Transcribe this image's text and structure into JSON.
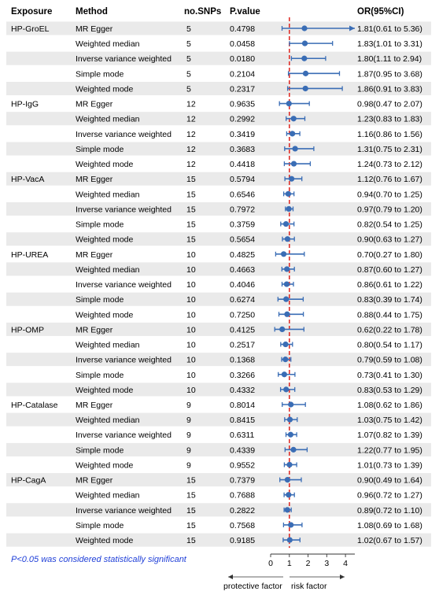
{
  "headers": {
    "exposure": "Exposure",
    "method": "Method",
    "nsnps": "no.SNPs",
    "pvalue": "P.value",
    "or": "OR(95%CI)"
  },
  "footnote": "P<0.05 was considered statistically significant",
  "axis_labels": {
    "left": "protective factor",
    "right": "risk factor"
  },
  "colors": {
    "stripe": "#eaeaea",
    "point": "#3a6db5",
    "reference_line": "#e0312b",
    "footnote": "#1f3fd8"
  },
  "chart_data": {
    "type": "forest",
    "xlim": [
      0,
      4.5
    ],
    "x_ticks": [
      0,
      1,
      2,
      3,
      4
    ],
    "reference_line": 1,
    "arrow_clipped_upper_bound": 4.5,
    "rows": [
      {
        "exposure": "HP-GroEL",
        "method": "MR Egger",
        "nsnps": "5",
        "pvalue": "0.4798",
        "or_text": "1.81(0.61 to 5.36)",
        "or": 1.81,
        "lo": 0.61,
        "hi": 5.36
      },
      {
        "exposure": "",
        "method": "Weighted median",
        "nsnps": "5",
        "pvalue": "0.0458",
        "or_text": "1.83(1.01 to 3.31)",
        "or": 1.83,
        "lo": 1.01,
        "hi": 3.31
      },
      {
        "exposure": "",
        "method": "Inverse variance weighted",
        "nsnps": "5",
        "pvalue": "0.0180",
        "or_text": "1.80(1.11 to 2.94)",
        "or": 1.8,
        "lo": 1.11,
        "hi": 2.94
      },
      {
        "exposure": "",
        "method": "Simple mode",
        "nsnps": "5",
        "pvalue": "0.2104",
        "or_text": "1.87(0.95 to 3.68)",
        "or": 1.87,
        "lo": 0.95,
        "hi": 3.68
      },
      {
        "exposure": "",
        "method": "Weighted mode",
        "nsnps": "5",
        "pvalue": "0.2317",
        "or_text": "1.86(0.91 to 3.83)",
        "or": 1.86,
        "lo": 0.91,
        "hi": 3.83
      },
      {
        "exposure": "HP-IgG",
        "method": "MR Egger",
        "nsnps": "12",
        "pvalue": "0.9635",
        "or_text": "0.98(0.47 to 2.07)",
        "or": 0.98,
        "lo": 0.47,
        "hi": 2.07
      },
      {
        "exposure": "",
        "method": "Weighted median",
        "nsnps": "12",
        "pvalue": "0.2992",
        "or_text": "1.23(0.83 to 1.83)",
        "or": 1.23,
        "lo": 0.83,
        "hi": 1.83
      },
      {
        "exposure": "",
        "method": "Inverse variance weighted",
        "nsnps": "12",
        "pvalue": "0.3419",
        "or_text": "1.16(0.86 to 1.56)",
        "or": 1.16,
        "lo": 0.86,
        "hi": 1.56
      },
      {
        "exposure": "",
        "method": "Simple mode",
        "nsnps": "12",
        "pvalue": "0.3683",
        "or_text": "1.31(0.75 to 2.31)",
        "or": 1.31,
        "lo": 0.75,
        "hi": 2.31
      },
      {
        "exposure": "",
        "method": "Weighted mode",
        "nsnps": "12",
        "pvalue": "0.4418",
        "or_text": "1.24(0.73 to 2.12)",
        "or": 1.24,
        "lo": 0.73,
        "hi": 2.12
      },
      {
        "exposure": "HP-VacA",
        "method": "MR Egger",
        "nsnps": "15",
        "pvalue": "0.5794",
        "or_text": "1.12(0.76 to 1.67)",
        "or": 1.12,
        "lo": 0.76,
        "hi": 1.67
      },
      {
        "exposure": "",
        "method": "Weighted median",
        "nsnps": "15",
        "pvalue": "0.6546",
        "or_text": "0.94(0.70 to 1.25)",
        "or": 0.94,
        "lo": 0.7,
        "hi": 1.25
      },
      {
        "exposure": "",
        "method": "Inverse variance weighted",
        "nsnps": "15",
        "pvalue": "0.7972",
        "or_text": "0.97(0.79 to 1.20)",
        "or": 0.97,
        "lo": 0.79,
        "hi": 1.2
      },
      {
        "exposure": "",
        "method": "Simple mode",
        "nsnps": "15",
        "pvalue": "0.3759",
        "or_text": "0.82(0.54 to 1.25)",
        "or": 0.82,
        "lo": 0.54,
        "hi": 1.25
      },
      {
        "exposure": "",
        "method": "Weighted mode",
        "nsnps": "15",
        "pvalue": "0.5654",
        "or_text": "0.90(0.63 to 1.27)",
        "or": 0.9,
        "lo": 0.63,
        "hi": 1.27
      },
      {
        "exposure": "HP-UREA",
        "method": "MR Egger",
        "nsnps": "10",
        "pvalue": "0.4825",
        "or_text": "0.70(0.27 to 1.80)",
        "or": 0.7,
        "lo": 0.27,
        "hi": 1.8
      },
      {
        "exposure": "",
        "method": "Weighted median",
        "nsnps": "10",
        "pvalue": "0.4663",
        "or_text": "0.87(0.60 to 1.27)",
        "or": 0.87,
        "lo": 0.6,
        "hi": 1.27
      },
      {
        "exposure": "",
        "method": "Inverse variance weighted",
        "nsnps": "10",
        "pvalue": "0.4046",
        "or_text": "0.86(0.61 to 1.22)",
        "or": 0.86,
        "lo": 0.61,
        "hi": 1.22
      },
      {
        "exposure": "",
        "method": "Simple mode",
        "nsnps": "10",
        "pvalue": "0.6274",
        "or_text": "0.83(0.39 to 1.74)",
        "or": 0.83,
        "lo": 0.39,
        "hi": 1.74
      },
      {
        "exposure": "",
        "method": "Weighted mode",
        "nsnps": "10",
        "pvalue": "0.7250",
        "or_text": "0.88(0.44 to 1.75)",
        "or": 0.88,
        "lo": 0.44,
        "hi": 1.75
      },
      {
        "exposure": "HP-OMP",
        "method": "MR Egger",
        "nsnps": "10",
        "pvalue": "0.4125",
        "or_text": "0.62(0.22 to 1.78)",
        "or": 0.62,
        "lo": 0.22,
        "hi": 1.78
      },
      {
        "exposure": "",
        "method": "Weighted median",
        "nsnps": "10",
        "pvalue": "0.2517",
        "or_text": "0.80(0.54 to 1.17)",
        "or": 0.8,
        "lo": 0.54,
        "hi": 1.17
      },
      {
        "exposure": "",
        "method": "Inverse variance weighted",
        "nsnps": "10",
        "pvalue": "0.1368",
        "or_text": "0.79(0.59 to 1.08)",
        "or": 0.79,
        "lo": 0.59,
        "hi": 1.08
      },
      {
        "exposure": "",
        "method": "Simple mode",
        "nsnps": "10",
        "pvalue": "0.3266",
        "or_text": "0.73(0.41 to 1.30)",
        "or": 0.73,
        "lo": 0.41,
        "hi": 1.3
      },
      {
        "exposure": "",
        "method": "Weighted mode",
        "nsnps": "10",
        "pvalue": "0.4332",
        "or_text": "0.83(0.53 to 1.29)",
        "or": 0.83,
        "lo": 0.53,
        "hi": 1.29
      },
      {
        "exposure": "HP-Catalase",
        "method": "MR Egger",
        "nsnps": "9",
        "pvalue": "0.8014",
        "or_text": "1.08(0.62 to 1.86)",
        "or": 1.08,
        "lo": 0.62,
        "hi": 1.86
      },
      {
        "exposure": "",
        "method": "Weighted median",
        "nsnps": "9",
        "pvalue": "0.8415",
        "or_text": "1.03(0.75 to 1.42)",
        "or": 1.03,
        "lo": 0.75,
        "hi": 1.42
      },
      {
        "exposure": "",
        "method": "Inverse variance weighted",
        "nsnps": "9",
        "pvalue": "0.6311",
        "or_text": "1.07(0.82 to 1.39)",
        "or": 1.07,
        "lo": 0.82,
        "hi": 1.39
      },
      {
        "exposure": "",
        "method": "Simple mode",
        "nsnps": "9",
        "pvalue": "0.4339",
        "or_text": "1.22(0.77 to 1.95)",
        "or": 1.22,
        "lo": 0.77,
        "hi": 1.95
      },
      {
        "exposure": "",
        "method": "Weighted mode",
        "nsnps": "9",
        "pvalue": "0.9552",
        "or_text": "1.01(0.73 to 1.39)",
        "or": 1.01,
        "lo": 0.73,
        "hi": 1.39
      },
      {
        "exposure": "HP-CagA",
        "method": "MR Egger",
        "nsnps": "15",
        "pvalue": "0.7379",
        "or_text": "0.90(0.49 to 1.64)",
        "or": 0.9,
        "lo": 0.49,
        "hi": 1.64
      },
      {
        "exposure": "",
        "method": "Weighted median",
        "nsnps": "15",
        "pvalue": "0.7688",
        "or_text": "0.96(0.72 to 1.27)",
        "or": 0.96,
        "lo": 0.72,
        "hi": 1.27
      },
      {
        "exposure": "",
        "method": "Inverse variance weighted",
        "nsnps": "15",
        "pvalue": "0.2822",
        "or_text": "0.89(0.72 to 1.10)",
        "or": 0.89,
        "lo": 0.72,
        "hi": 1.1
      },
      {
        "exposure": "",
        "method": "Simple mode",
        "nsnps": "15",
        "pvalue": "0.7568",
        "or_text": "1.08(0.69 to 1.68)",
        "or": 1.08,
        "lo": 0.69,
        "hi": 1.68
      },
      {
        "exposure": "",
        "method": "Weighted mode",
        "nsnps": "15",
        "pvalue": "0.9185",
        "or_text": "1.02(0.67 to 1.57)",
        "or": 1.02,
        "lo": 0.67,
        "hi": 1.57
      }
    ]
  }
}
